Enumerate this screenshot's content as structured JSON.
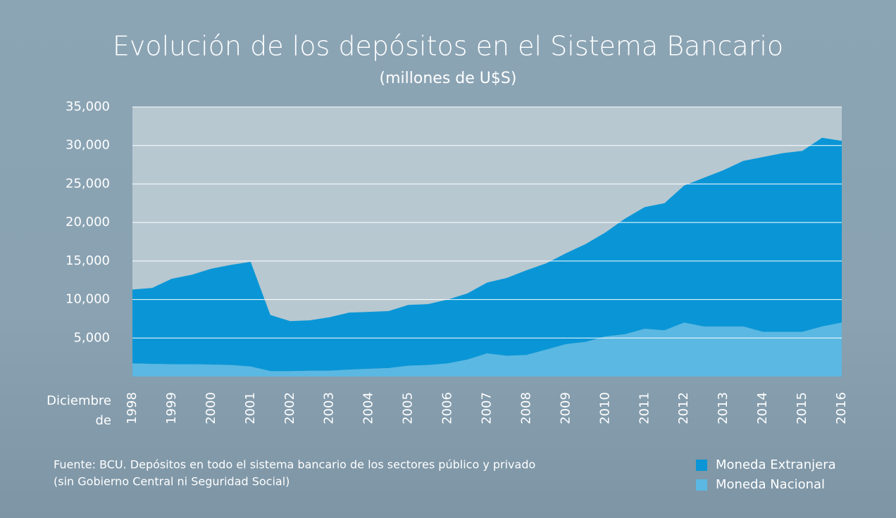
{
  "chart_data": {
    "type": "stacked_area",
    "title": "Evolución de los depósitos en el Sistema Bancario",
    "subtitle": "(millones de U$S)",
    "xlabel_lines": [
      "Diciembre",
      "de"
    ],
    "note_lines": [
      "Fuente: BCU. Depósitos en todo el sistema bancario de los sectores público y privado",
      "(sin Gobierno Central ni Seguridad Social)"
    ],
    "categories": [
      "1998",
      null,
      "1999",
      null,
      "2000",
      null,
      "2001",
      null,
      "2002",
      null,
      "2003",
      null,
      "2004",
      null,
      "2005",
      null,
      "2006",
      null,
      "2007",
      null,
      "2008",
      null,
      "2009",
      null,
      "2010",
      null,
      "2011",
      null,
      "2012",
      null,
      "2013",
      null,
      "2014",
      null,
      "2015",
      null,
      "2016"
    ],
    "series": [
      {
        "name": "Moneda Extranjera",
        "color": "#0a96d6",
        "values": [
          9600,
          9850,
          11100,
          11600,
          12450,
          13000,
          13600,
          7300,
          6500,
          6550,
          6950,
          7400,
          7400,
          7400,
          7900,
          7900,
          8300,
          8600,
          9200,
          10100,
          11000,
          11200,
          11800,
          12700,
          13500,
          15000,
          15800,
          16500,
          17800,
          19300,
          20300,
          21500,
          22700,
          23200,
          23500,
          24500,
          23600
        ]
      },
      {
        "name": "Moneda Nacional",
        "color": "#5ab8e2",
        "values": [
          1700,
          1650,
          1600,
          1600,
          1550,
          1500,
          1300,
          700,
          700,
          750,
          750,
          900,
          1000,
          1100,
          1400,
          1500,
          1700,
          2200,
          3000,
          2700,
          2800,
          3500,
          4200,
          4500,
          5200,
          5500,
          6200,
          6000,
          7000,
          6500,
          6500,
          6500,
          5800,
          5800,
          5800,
          6500,
          7000
        ]
      }
    ],
    "ylim": [
      0,
      35000
    ],
    "yticks": [
      {
        "value": 5000,
        "label": "5,000"
      },
      {
        "value": 10000,
        "label": "10,000"
      },
      {
        "value": 15000,
        "label": "15,000"
      },
      {
        "value": 20000,
        "label": "20,000"
      },
      {
        "value": 25000,
        "label": "25,000"
      },
      {
        "value": 30000,
        "label": "30,000"
      },
      {
        "value": 35000,
        "label": "35,000"
      }
    ],
    "grid": true,
    "legend": "bottom-right"
  }
}
